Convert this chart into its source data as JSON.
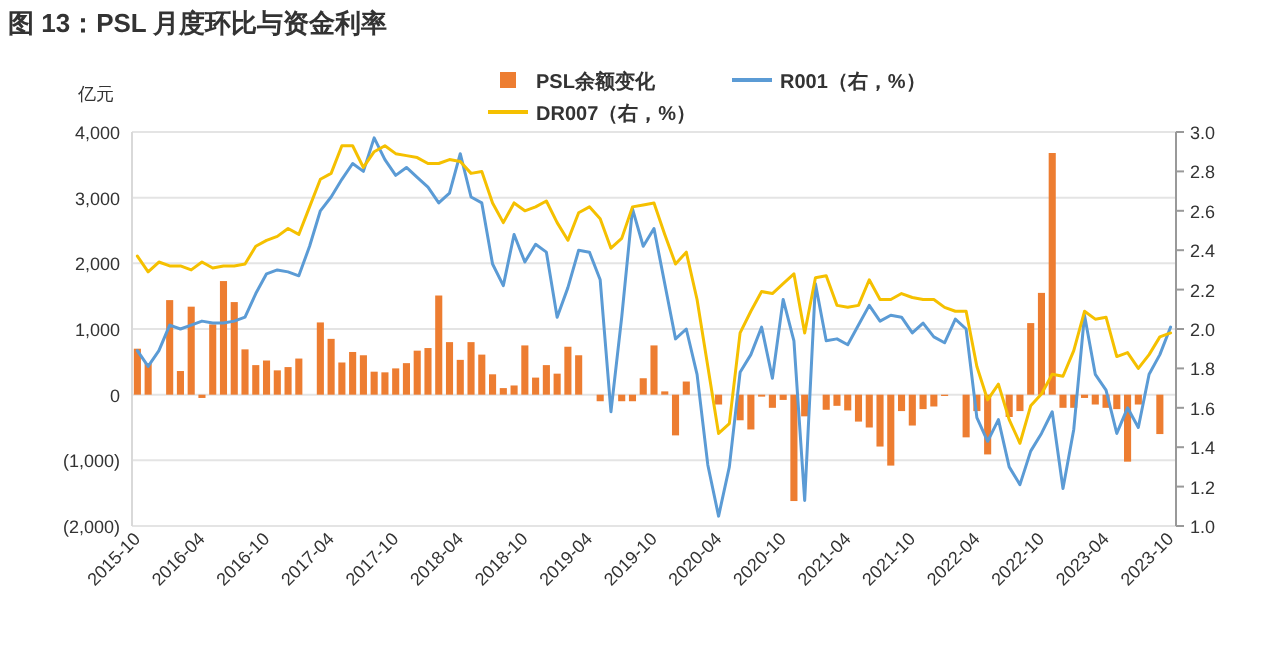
{
  "chart_data": {
    "type": "bar",
    "title": "图 13：PSL 月度环比与资金利率",
    "ylabel": "亿元",
    "categories": [
      "2015-10",
      null,
      null,
      null,
      null,
      null,
      "2016-04",
      null,
      null,
      null,
      null,
      null,
      "2016-10",
      null,
      null,
      null,
      null,
      null,
      "2017-04",
      null,
      null,
      null,
      null,
      null,
      "2017-10",
      null,
      null,
      null,
      null,
      null,
      "2018-04",
      null,
      null,
      null,
      null,
      null,
      "2018-10",
      null,
      null,
      null,
      null,
      null,
      "2019-04",
      null,
      null,
      null,
      null,
      null,
      "2019-10",
      null,
      null,
      null,
      null,
      null,
      "2020-04",
      null,
      null,
      null,
      null,
      null,
      "2020-10",
      null,
      null,
      null,
      null,
      null,
      "2021-04",
      null,
      null,
      null,
      null,
      null,
      "2021-10",
      null,
      null,
      null,
      null,
      null,
      "2022-04",
      null,
      null,
      null,
      null,
      null,
      "2022-10",
      null,
      null,
      null,
      null,
      null,
      "2023-04",
      null,
      null,
      null,
      null,
      null,
      "2023-10"
    ],
    "series": [
      {
        "name": "PSL余额变化",
        "color": "#ed7d31",
        "values": [
          700,
          480,
          null,
          1440,
          360,
          1340,
          -50,
          1070,
          1730,
          1410,
          690,
          450,
          520,
          370,
          420,
          550,
          null,
          1100,
          850,
          490,
          650,
          600,
          350,
          340,
          400,
          480,
          670,
          710,
          1510,
          800,
          530,
          800,
          610,
          310,
          100,
          140,
          750,
          260,
          450,
          320,
          730,
          600,
          null,
          -100,
          null,
          -100,
          -100,
          250,
          750,
          50,
          -620,
          200,
          null,
          null,
          -150,
          null,
          -390,
          -530,
          -30,
          -200,
          -80,
          -1620,
          -330,
          null,
          -230,
          -170,
          -240,
          -410,
          -500,
          -790,
          -1080,
          -250,
          -470,
          -220,
          -180,
          -20,
          null,
          -650,
          -250,
          -910,
          null,
          -340,
          -250,
          1090,
          1550,
          3680,
          -200,
          -200,
          -50,
          -150,
          -200,
          -220,
          -1020,
          -150,
          null,
          -600,
          null
        ]
      },
      {
        "name": "R001（右，%）",
        "type": "line",
        "axis": "y2",
        "color": "#5b9bd5",
        "values": [
          1.89,
          1.81,
          1.89,
          2.02,
          2.0,
          2.02,
          2.04,
          2.03,
          2.03,
          2.04,
          2.06,
          2.18,
          2.28,
          2.3,
          2.29,
          2.27,
          2.42,
          2.6,
          2.67,
          2.76,
          2.84,
          2.8,
          2.97,
          2.86,
          2.78,
          2.82,
          2.77,
          2.72,
          2.64,
          2.69,
          2.89,
          2.67,
          2.64,
          2.33,
          2.22,
          2.48,
          2.34,
          2.43,
          2.39,
          2.06,
          2.21,
          2.4,
          2.39,
          2.25,
          1.58,
          2.06,
          2.61,
          2.42,
          2.51,
          2.23,
          1.95,
          2.0,
          1.77,
          1.31,
          1.05,
          1.3,
          1.78,
          1.87,
          2.01,
          1.75,
          2.15,
          1.94,
          1.13,
          2.23,
          1.94,
          1.95,
          1.92,
          2.02,
          2.12,
          2.04,
          2.07,
          2.06,
          1.98,
          2.03,
          1.96,
          1.93,
          2.05,
          2.0,
          1.55,
          1.43,
          1.54,
          1.3,
          1.21,
          1.38,
          1.47,
          1.58,
          1.19,
          1.49,
          2.07,
          1.77,
          1.69,
          1.47,
          1.6,
          1.5,
          1.77,
          1.87,
          2.01
        ]
      },
      {
        "name": "DR007（右，%）",
        "type": "line",
        "axis": "y2",
        "color": "#f5c000",
        "values": [
          2.37,
          2.29,
          2.34,
          2.32,
          2.32,
          2.3,
          2.34,
          2.31,
          2.32,
          2.32,
          2.33,
          2.42,
          2.45,
          2.47,
          2.51,
          2.48,
          2.62,
          2.76,
          2.79,
          2.93,
          2.93,
          2.82,
          2.9,
          2.93,
          2.89,
          2.88,
          2.87,
          2.84,
          2.84,
          2.86,
          2.85,
          2.79,
          2.8,
          2.64,
          2.54,
          2.64,
          2.6,
          2.62,
          2.65,
          2.54,
          2.45,
          2.59,
          2.62,
          2.56,
          2.41,
          2.46,
          2.62,
          2.63,
          2.64,
          2.48,
          2.33,
          2.39,
          2.15,
          1.81,
          1.47,
          1.52,
          1.98,
          2.09,
          2.19,
          2.18,
          2.23,
          2.28,
          1.98,
          2.26,
          2.27,
          2.12,
          2.11,
          2.12,
          2.25,
          2.15,
          2.15,
          2.18,
          2.16,
          2.15,
          2.15,
          2.11,
          2.09,
          2.09,
          1.81,
          1.64,
          1.72,
          1.54,
          1.42,
          1.61,
          1.67,
          1.77,
          1.76,
          1.89,
          2.09,
          2.05,
          2.06,
          1.86,
          1.88,
          1.8,
          1.87,
          1.96,
          1.98
        ]
      }
    ],
    "ylim": [
      -2000,
      4000
    ],
    "yticks": [
      {
        "value": -2000,
        "label": "(2,000)"
      },
      {
        "value": -1000,
        "label": "(1,000)"
      },
      0,
      {
        "value": 1000,
        "label": "1,000"
      },
      {
        "value": 2000,
        "label": "2,000"
      },
      {
        "value": 3000,
        "label": "3,000"
      },
      {
        "value": 4000,
        "label": "4,000"
      }
    ],
    "y2lim": [
      1,
      3
    ],
    "y2ticks": [
      {
        "value": 1,
        "label": "1.0"
      },
      {
        "value": 1.2,
        "label": "1.2"
      },
      {
        "value": 1.4,
        "label": "1.4"
      },
      {
        "value": 1.6,
        "label": "1.6"
      },
      {
        "value": 1.8,
        "label": "1.8"
      },
      {
        "value": 2,
        "label": "2.0"
      },
      {
        "value": 2.2,
        "label": "2.2"
      },
      {
        "value": 2.4,
        "label": "2.4"
      },
      {
        "value": 2.6,
        "label": "2.6"
      },
      {
        "value": 2.8,
        "label": "2.8"
      },
      {
        "value": 3,
        "label": "3.0"
      }
    ],
    "grid": "y",
    "legend": "top right",
    "line_style": "solid",
    "marker": "none"
  }
}
